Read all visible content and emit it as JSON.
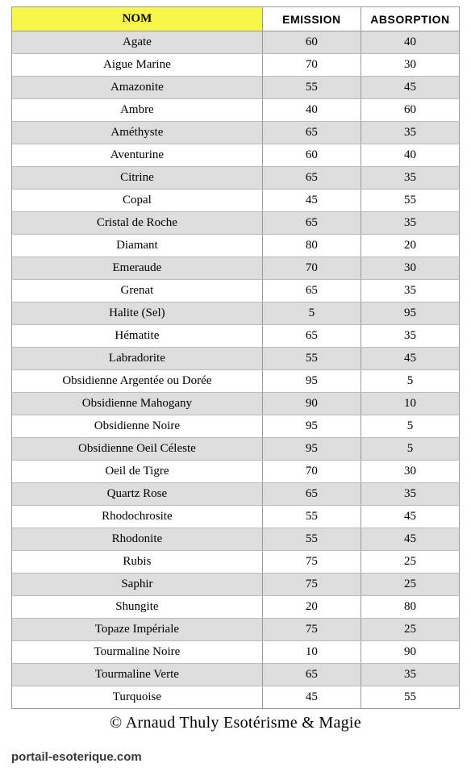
{
  "table": {
    "headers": {
      "nom": "NOM",
      "emission": "EMISSION",
      "absorption": "ABSORPTION"
    },
    "header_bg_nom": "#f7f74a",
    "row_bg_odd": "#dddddd",
    "row_bg_even": "#ffffff",
    "border_color": "#999999",
    "font_family_body": "Times New Roman",
    "font_family_header_num": "Arial",
    "rows": [
      {
        "nom": "Agate",
        "emission": 60,
        "absorption": 40
      },
      {
        "nom": "Aigue Marine",
        "emission": 70,
        "absorption": 30
      },
      {
        "nom": "Amazonite",
        "emission": 55,
        "absorption": 45
      },
      {
        "nom": "Ambre",
        "emission": 40,
        "absorption": 60
      },
      {
        "nom": "Améthyste",
        "emission": 65,
        "absorption": 35
      },
      {
        "nom": "Aventurine",
        "emission": 60,
        "absorption": 40
      },
      {
        "nom": "Citrine",
        "emission": 65,
        "absorption": 35
      },
      {
        "nom": "Copal",
        "emission": 45,
        "absorption": 55
      },
      {
        "nom": "Cristal de Roche",
        "emission": 65,
        "absorption": 35
      },
      {
        "nom": "Diamant",
        "emission": 80,
        "absorption": 20
      },
      {
        "nom": "Emeraude",
        "emission": 70,
        "absorption": 30
      },
      {
        "nom": "Grenat",
        "emission": 65,
        "absorption": 35
      },
      {
        "nom": "Halite (Sel)",
        "emission": 5,
        "absorption": 95
      },
      {
        "nom": "Hématite",
        "emission": 65,
        "absorption": 35
      },
      {
        "nom": "Labradorite",
        "emission": 55,
        "absorption": 45
      },
      {
        "nom": "Obsidienne Argentée ou Dorée",
        "emission": 95,
        "absorption": 5
      },
      {
        "nom": "Obsidienne Mahogany",
        "emission": 90,
        "absorption": 10
      },
      {
        "nom": "Obsidienne Noire",
        "emission": 95,
        "absorption": 5
      },
      {
        "nom": "Obsidienne Oeil Céleste",
        "emission": 95,
        "absorption": 5
      },
      {
        "nom": "Oeil de Tigre",
        "emission": 70,
        "absorption": 30
      },
      {
        "nom": "Quartz Rose",
        "emission": 65,
        "absorption": 35
      },
      {
        "nom": "Rhodochrosite",
        "emission": 55,
        "absorption": 45
      },
      {
        "nom": "Rhodonite",
        "emission": 55,
        "absorption": 45
      },
      {
        "nom": "Rubis",
        "emission": 75,
        "absorption": 25
      },
      {
        "nom": "Saphir",
        "emission": 75,
        "absorption": 25
      },
      {
        "nom": "Shungite",
        "emission": 20,
        "absorption": 80
      },
      {
        "nom": "Topaze Impériale",
        "emission": 75,
        "absorption": 25
      },
      {
        "nom": "Tourmaline Noire",
        "emission": 10,
        "absorption": 90
      },
      {
        "nom": "Tourmaline Verte",
        "emission": 65,
        "absorption": 35
      },
      {
        "nom": "Turquoise",
        "emission": 45,
        "absorption": 55
      }
    ]
  },
  "copyright": "© Arnaud Thuly Esotérisme & Magie",
  "source": "portail-esoterique.com"
}
